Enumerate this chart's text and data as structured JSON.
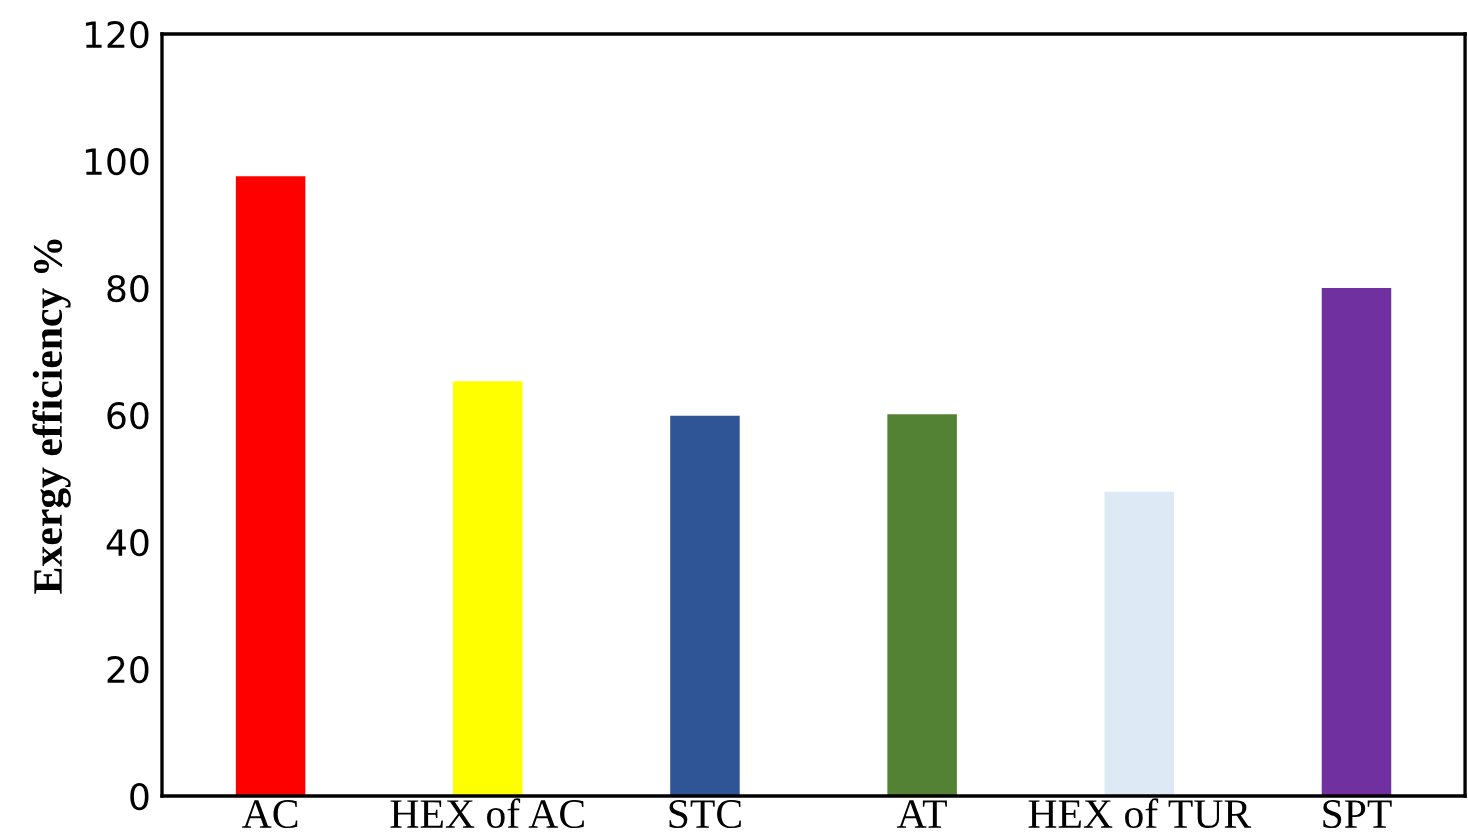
{
  "chart_data": {
    "type": "bar",
    "ylabel": "Exergy efficiency %",
    "categories": [
      "AC",
      "HEX of AC",
      "STC",
      "AT",
      "HEX of TUR",
      "SPT"
    ],
    "values": [
      97.6,
      65.3,
      59.9,
      60.1,
      47.9,
      80
    ],
    "colors": [
      "#ff0000",
      "#ffff00",
      "#2f5597",
      "#548235",
      "#dde9f5",
      "#7030a0"
    ],
    "ylim": [
      0,
      120
    ],
    "yticks": [
      0,
      20,
      40,
      60,
      80,
      100,
      120
    ],
    "grid": false,
    "legend": false
  }
}
